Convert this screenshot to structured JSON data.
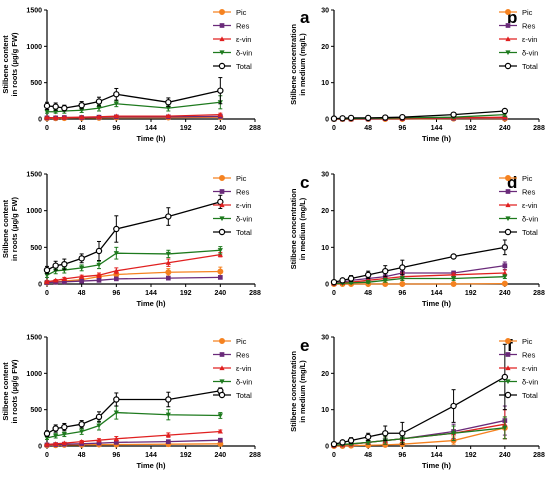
{
  "figure": {
    "x_ticks": [
      0,
      48,
      96,
      144,
      192,
      240,
      288
    ],
    "xlabel": "Time (h)",
    "ylabel_roots": [
      "Stilbene content",
      "in roots (µg/g FW)"
    ],
    "ylabel_medium": [
      "Stilbene concentration",
      "in medium (mg/L)"
    ]
  },
  "legend": [
    {
      "name": "Pic",
      "color": "#f58220",
      "marker": "circle-filled"
    },
    {
      "name": "Res",
      "color": "#6a2a7a",
      "marker": "square-filled"
    },
    {
      "name": "ε-vin",
      "color": "#e02020",
      "marker": "triangle-up"
    },
    {
      "name": "δ-vin",
      "color": "#1e7a1e",
      "marker": "triangle-down"
    },
    {
      "name": "Total",
      "color": "#000000",
      "marker": "circle-open"
    }
  ],
  "chart_data": [
    {
      "panel": "a",
      "type": "line",
      "xlabel": "Time (h)",
      "ylabel": "Stilbene content in roots (µg/g FW)",
      "xlim": [
        0,
        288
      ],
      "ylim": [
        0,
        1500
      ],
      "y_ticks": [
        0,
        500,
        1000,
        1500
      ],
      "x": [
        0,
        12,
        24,
        48,
        72,
        96,
        168,
        240
      ],
      "series": [
        {
          "name": "Pic",
          "values": [
            10,
            10,
            12,
            15,
            15,
            20,
            20,
            25
          ],
          "err": [
            5,
            5,
            5,
            5,
            5,
            5,
            5,
            10
          ]
        },
        {
          "name": "Res",
          "values": [
            15,
            15,
            20,
            20,
            25,
            30,
            30,
            35
          ],
          "err": [
            5,
            5,
            5,
            5,
            5,
            5,
            5,
            10
          ]
        },
        {
          "name": "ε-vin",
          "values": [
            20,
            15,
            20,
            25,
            30,
            40,
            40,
            60
          ],
          "err": [
            5,
            5,
            5,
            5,
            5,
            10,
            10,
            20
          ]
        },
        {
          "name": "δ-vin",
          "values": [
            100,
            100,
            110,
            120,
            150,
            210,
            150,
            230
          ],
          "err": [
            20,
            20,
            30,
            30,
            40,
            40,
            40,
            90
          ]
        },
        {
          "name": "Total",
          "values": [
            180,
            170,
            150,
            190,
            240,
            340,
            230,
            390
          ],
          "err": [
            50,
            50,
            40,
            50,
            60,
            80,
            60,
            180
          ]
        }
      ]
    },
    {
      "panel": "b",
      "type": "line",
      "xlabel": "Time (h)",
      "ylabel": "Stilbene concentration in medium (mg/L)",
      "xlim": [
        0,
        288
      ],
      "ylim": [
        0,
        30
      ],
      "y_ticks": [
        0,
        10,
        20,
        30
      ],
      "x": [
        0,
        12,
        24,
        48,
        72,
        96,
        168,
        240
      ],
      "series": [
        {
          "name": "Pic",
          "values": [
            0,
            0,
            0,
            0,
            0,
            0,
            0.1,
            0.1
          ],
          "err": [
            0,
            0,
            0,
            0,
            0,
            0,
            0.1,
            0.1
          ]
        },
        {
          "name": "Res",
          "values": [
            0,
            0,
            0,
            0,
            0.1,
            0.1,
            0.2,
            0.3
          ],
          "err": [
            0,
            0,
            0,
            0,
            0.1,
            0.1,
            0.1,
            0.1
          ]
        },
        {
          "name": "ε-vin",
          "values": [
            0,
            0,
            0,
            0.1,
            0.1,
            0.1,
            0.3,
            0.5
          ],
          "err": [
            0,
            0,
            0,
            0.1,
            0.1,
            0.1,
            0.2,
            0.3
          ]
        },
        {
          "name": "δ-vin",
          "values": [
            0.1,
            0.1,
            0.1,
            0.2,
            0.2,
            0.3,
            0.5,
            1.2
          ],
          "err": [
            0.1,
            0.1,
            0.1,
            0.1,
            0.1,
            0.2,
            0.3,
            0.5
          ]
        },
        {
          "name": "Total",
          "values": [
            0.1,
            0.2,
            0.3,
            0.3,
            0.4,
            0.5,
            1.2,
            2.2
          ],
          "err": [
            0.1,
            0.1,
            0.1,
            0.1,
            0.2,
            0.2,
            0.5,
            0.5
          ]
        }
      ]
    },
    {
      "panel": "c",
      "type": "line",
      "xlabel": "Time (h)",
      "ylabel": "Stilbene content in roots (µg/g FW)",
      "xlim": [
        0,
        288
      ],
      "ylim": [
        0,
        1500
      ],
      "y_ticks": [
        0,
        500,
        1000,
        1500
      ],
      "x": [
        0,
        12,
        24,
        48,
        72,
        96,
        168,
        240
      ],
      "series": [
        {
          "name": "Pic",
          "values": [
            20,
            30,
            40,
            60,
            100,
            130,
            160,
            170
          ],
          "err": [
            5,
            10,
            10,
            20,
            30,
            40,
            50,
            60
          ]
        },
        {
          "name": "Res",
          "values": [
            20,
            25,
            30,
            40,
            50,
            70,
            80,
            90
          ],
          "err": [
            5,
            5,
            10,
            10,
            10,
            15,
            15,
            20
          ]
        },
        {
          "name": "ε-vin",
          "values": [
            30,
            50,
            70,
            100,
            120,
            180,
            290,
            400
          ],
          "err": [
            10,
            10,
            20,
            20,
            30,
            40,
            50,
            30
          ]
        },
        {
          "name": "δ-vin",
          "values": [
            120,
            180,
            190,
            220,
            260,
            420,
            410,
            460
          ],
          "err": [
            30,
            40,
            40,
            40,
            50,
            80,
            50,
            50
          ]
        },
        {
          "name": "Total",
          "values": [
            190,
            250,
            270,
            350,
            450,
            750,
            920,
            1120
          ],
          "err": [
            50,
            60,
            70,
            60,
            130,
            180,
            120,
            90
          ]
        }
      ]
    },
    {
      "panel": "d",
      "type": "line",
      "xlabel": "Time (h)",
      "ylabel": "Stilbene concentration in medium (mg/L)",
      "xlim": [
        0,
        288
      ],
      "ylim": [
        0,
        30
      ],
      "y_ticks": [
        0,
        10,
        20,
        30
      ],
      "x": [
        0,
        12,
        24,
        48,
        72,
        96,
        168,
        240
      ],
      "series": [
        {
          "name": "Pic",
          "values": [
            0,
            0,
            0,
            0,
            0,
            0,
            0,
            0.1
          ],
          "err": [
            0,
            0,
            0,
            0,
            0,
            0,
            0,
            0.1
          ]
        },
        {
          "name": "Res",
          "values": [
            0.2,
            0.5,
            1,
            1.5,
            2,
            3,
            3,
            5
          ],
          "err": [
            0.1,
            0.3,
            0.5,
            0.8,
            1,
            1.5,
            0.5,
            1
          ]
        },
        {
          "name": "ε-vin",
          "values": [
            0.1,
            0.3,
            0.5,
            1,
            1.5,
            2,
            2.5,
            3
          ],
          "err": [
            0.1,
            0.2,
            0.3,
            0.5,
            0.5,
            1,
            0.5,
            0.8
          ]
        },
        {
          "name": "δ-vin",
          "values": [
            0.1,
            0.2,
            0.3,
            0.5,
            1,
            1.5,
            1.5,
            2
          ],
          "err": [
            0.1,
            0.1,
            0.2,
            0.3,
            0.5,
            0.5,
            0.5,
            0.5
          ]
        },
        {
          "name": "Total",
          "values": [
            0.5,
            1,
            1.5,
            2.5,
            3.5,
            4.5,
            7.5,
            10
          ],
          "err": [
            0.3,
            0.5,
            0.8,
            1,
            1.5,
            2,
            0.5,
            2
          ]
        }
      ]
    },
    {
      "panel": "e",
      "type": "line",
      "xlabel": "Time (h)",
      "ylabel": "Stilbene content in roots (µg/g FW)",
      "xlim": [
        0,
        288
      ],
      "ylim": [
        0,
        1500
      ],
      "y_ticks": [
        0,
        500,
        1000,
        1500
      ],
      "x": [
        0,
        12,
        24,
        48,
        72,
        96,
        168,
        240
      ],
      "series": [
        {
          "name": "Pic",
          "values": [
            10,
            10,
            15,
            15,
            20,
            20,
            25,
            30
          ],
          "err": [
            5,
            5,
            5,
            5,
            5,
            5,
            5,
            5
          ]
        },
        {
          "name": "Res",
          "values": [
            15,
            20,
            25,
            30,
            40,
            50,
            60,
            80
          ],
          "err": [
            5,
            5,
            5,
            10,
            10,
            10,
            10,
            10
          ]
        },
        {
          "name": "ε-vin",
          "values": [
            20,
            30,
            40,
            60,
            80,
            100,
            150,
            200
          ],
          "err": [
            5,
            10,
            10,
            15,
            20,
            30,
            30,
            20
          ]
        },
        {
          "name": "δ-vin",
          "values": [
            110,
            140,
            160,
            200,
            280,
            460,
            430,
            420
          ],
          "err": [
            20,
            30,
            30,
            40,
            60,
            90,
            70,
            40
          ]
        },
        {
          "name": "Total",
          "values": [
            170,
            240,
            260,
            300,
            400,
            640,
            640,
            760
          ],
          "err": [
            40,
            50,
            50,
            50,
            70,
            90,
            100,
            40
          ]
        }
      ]
    },
    {
      "panel": "f",
      "type": "line",
      "xlabel": "Time (h)",
      "ylabel": "Stilbene concentration in medium (mg/L)",
      "xlim": [
        0,
        288
      ],
      "ylim": [
        0,
        30
      ],
      "y_ticks": [
        0,
        10,
        20,
        30
      ],
      "x": [
        0,
        12,
        24,
        48,
        72,
        96,
        168,
        240
      ],
      "series": [
        {
          "name": "Pic",
          "values": [
            0,
            0,
            0.1,
            0.2,
            0.3,
            0.5,
            1.5,
            5
          ],
          "err": [
            0,
            0,
            0.1,
            0.1,
            0.2,
            0.3,
            1,
            3
          ]
        },
        {
          "name": "Res",
          "values": [
            0.2,
            0.3,
            0.5,
            1,
            1.5,
            2,
            4,
            7
          ],
          "err": [
            0.1,
            0.2,
            0.3,
            0.5,
            1,
            1,
            2,
            4
          ]
        },
        {
          "name": "ε-vin",
          "values": [
            0.1,
            0.3,
            0.5,
            1,
            1.5,
            2,
            3.5,
            6
          ],
          "err": [
            0.1,
            0.2,
            0.3,
            0.5,
            1,
            1,
            2,
            4
          ]
        },
        {
          "name": "δ-vin",
          "values": [
            0.2,
            0.4,
            0.6,
            1,
            1.5,
            2,
            3.5,
            5
          ],
          "err": [
            0.1,
            0.2,
            0.3,
            0.5,
            1,
            1,
            2,
            3
          ]
        },
        {
          "name": "Total",
          "values": [
            0.5,
            1,
            1.5,
            2.5,
            3.5,
            3.5,
            11,
            19
          ],
          "err": [
            0.3,
            0.5,
            0.8,
            1,
            2,
            3,
            4.5,
            9
          ]
        }
      ]
    }
  ]
}
